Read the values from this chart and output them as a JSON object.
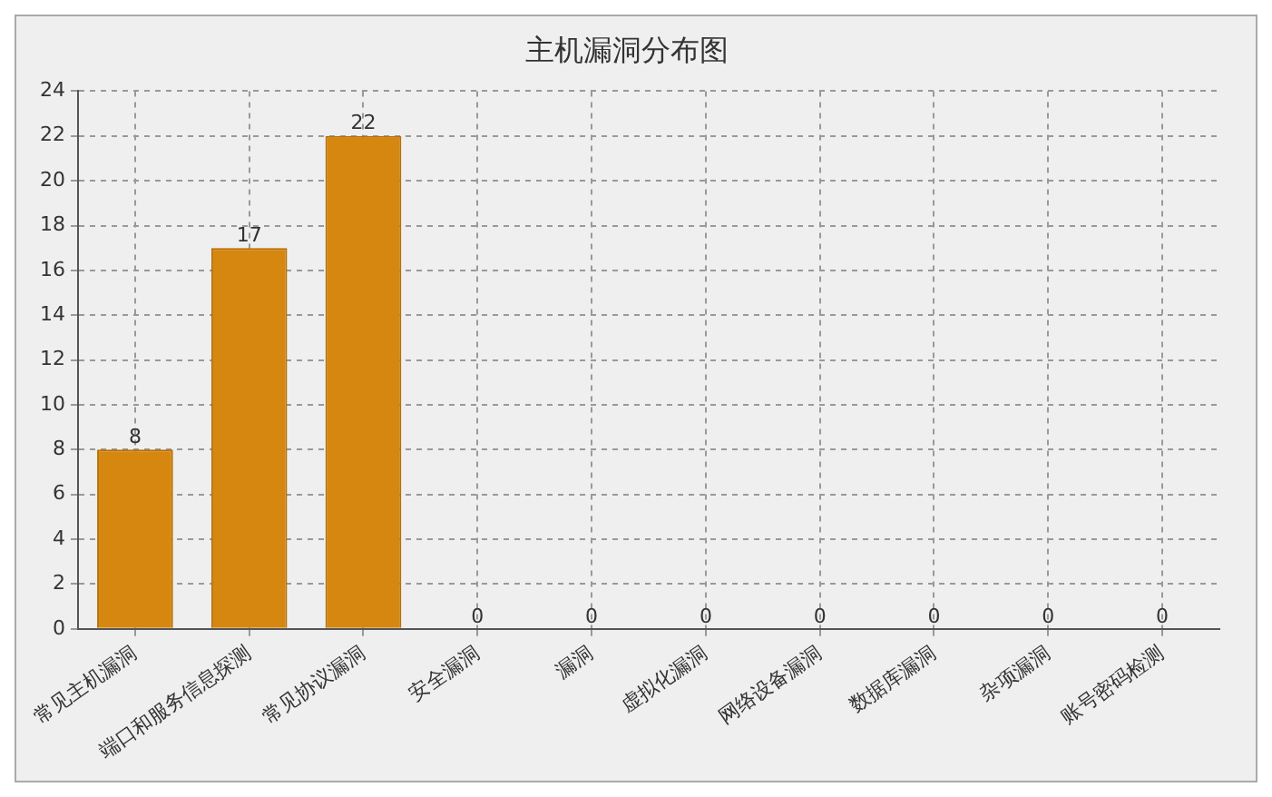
{
  "chart_data": {
    "type": "bar",
    "title": "主机漏洞分布图",
    "categories": [
      "常见主机漏洞",
      "端口和服务信息探测",
      "常见协议漏洞",
      "安全漏洞",
      "漏洞",
      "虚拟化漏洞",
      "网络设备漏洞",
      "数据库漏洞",
      "杂项漏洞",
      "账号密码检测"
    ],
    "values": [
      8,
      17,
      22,
      0,
      0,
      0,
      0,
      0,
      0,
      0
    ],
    "color": "#d6870f",
    "ylim": [
      0,
      24
    ],
    "yticks": [
      0,
      2,
      4,
      6,
      8,
      10,
      12,
      14,
      16,
      18,
      20,
      22,
      24
    ],
    "grid": true,
    "data_labels": true
  }
}
